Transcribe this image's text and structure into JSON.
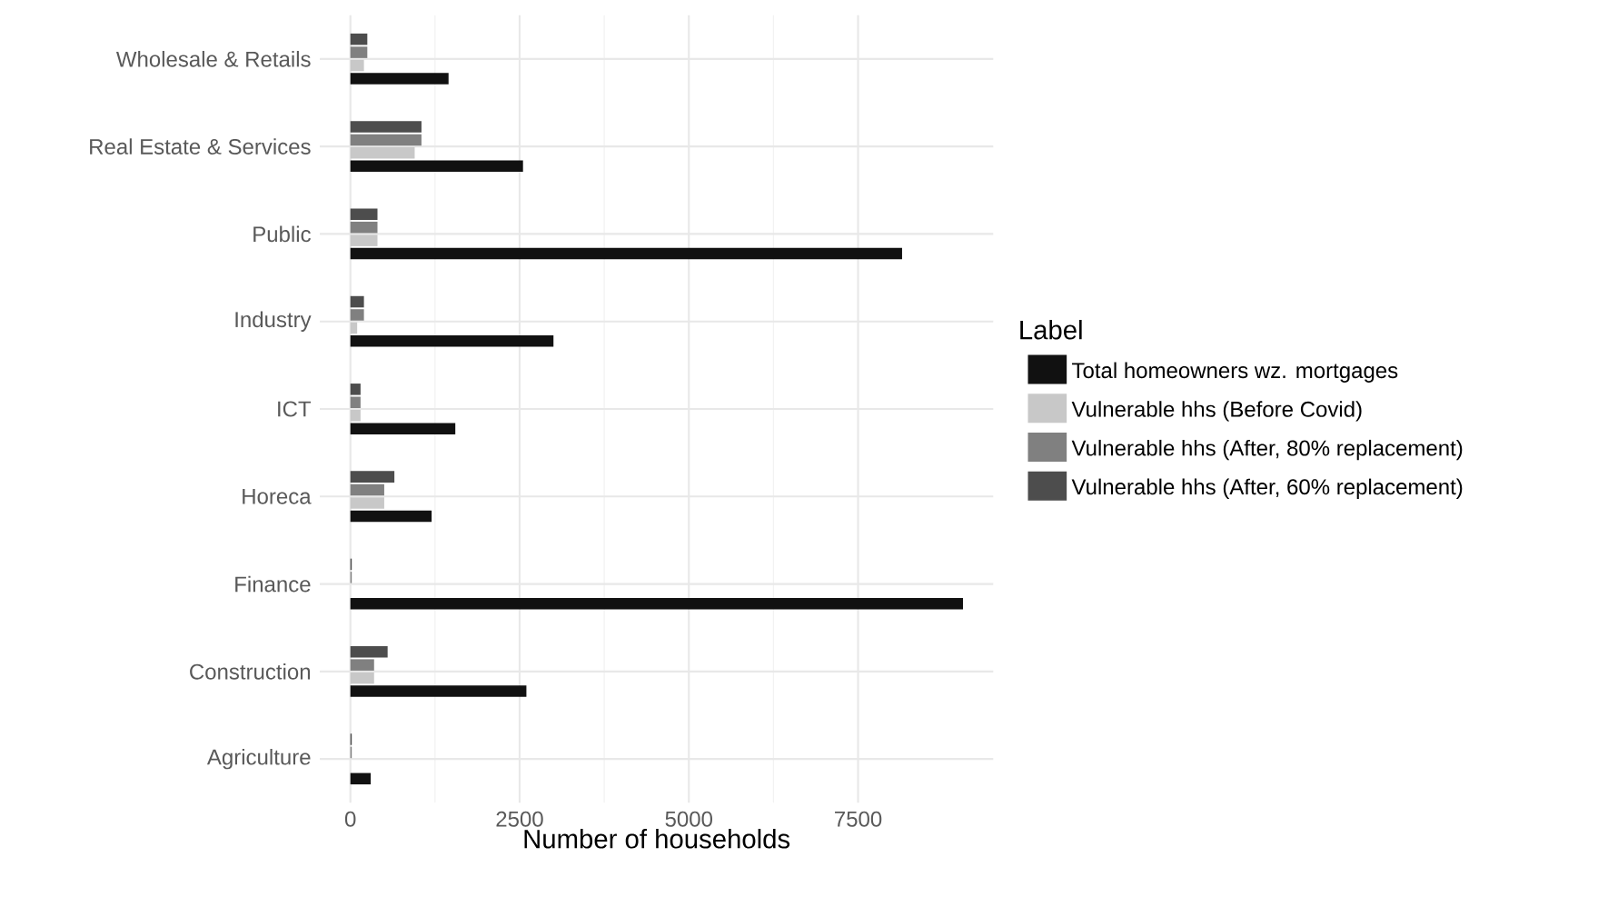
{
  "chart_data": {
    "type": "bar",
    "orientation": "horizontal",
    "xlabel": "Number of households",
    "legend_title": "Label",
    "categories": [
      "Wholesale & Retails",
      "Real Estate & Services",
      "Public",
      "Industry",
      "ICT",
      "Horeca",
      "Finance",
      "Construction",
      "Agriculture"
    ],
    "series": [
      {
        "name": "Total homeowners wz. mortgages",
        "color": "#111111",
        "values": [
          1450,
          2550,
          8150,
          3000,
          1550,
          1200,
          9050,
          2600,
          300
        ]
      },
      {
        "name": "Vulnerable hhs (Before Covid)",
        "color": "#c8c8c8",
        "values": [
          200,
          950,
          400,
          100,
          150,
          500,
          null,
          350,
          null
        ]
      },
      {
        "name": "Vulnerable hhs (After, 80% replacement)",
        "color": "#808080",
        "values": [
          250,
          1050,
          400,
          200,
          150,
          500,
          20,
          350,
          20
        ]
      },
      {
        "name": "Vulnerable hhs (After, 60% replacement)",
        "color": "#4d4d4d",
        "values": [
          250,
          1050,
          400,
          200,
          150,
          650,
          20,
          550,
          20
        ]
      }
    ],
    "xlim": [
      -452,
      9497
    ],
    "xticks": [
      0,
      2500,
      5000,
      7500
    ],
    "grid": true,
    "legend": "right"
  }
}
